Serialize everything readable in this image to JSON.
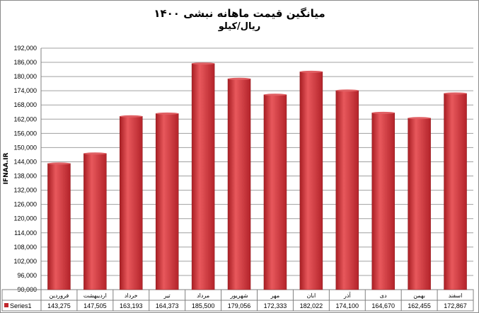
{
  "chart_data": {
    "type": "bar",
    "title": "میانگین قیمت ماهانه نبشی ۱۴۰۰",
    "subtitle": "ریال/کیلو",
    "ylabel": "IFNAA.IR",
    "xlabel": "",
    "categories": [
      "فروردین",
      "اردیبهشت",
      "خرداد",
      "تیر",
      "مرداد",
      "شهریور",
      "مهر",
      "ابان",
      "آذر",
      "دی",
      "بهمن",
      "اسفند"
    ],
    "series": [
      {
        "name": "Series1",
        "values": [
          143275,
          147505,
          163193,
          164373,
          185500,
          179056,
          172333,
          182022,
          174100,
          164670,
          162455,
          172867
        ],
        "labels": [
          "143,275",
          "147,505",
          "163,193",
          "164,373",
          "185,500",
          "179,056",
          "172,333",
          "182,022",
          "174,100",
          "164,670",
          "162,455",
          "172,867"
        ]
      }
    ],
    "ylim": [
      90000,
      192000
    ],
    "ytick_step": 6000,
    "grid": true,
    "legend": "data-table",
    "colors": {
      "bar": "#c0272d",
      "bar_light": "#e8585c",
      "grid": "#a0a0a0"
    }
  }
}
